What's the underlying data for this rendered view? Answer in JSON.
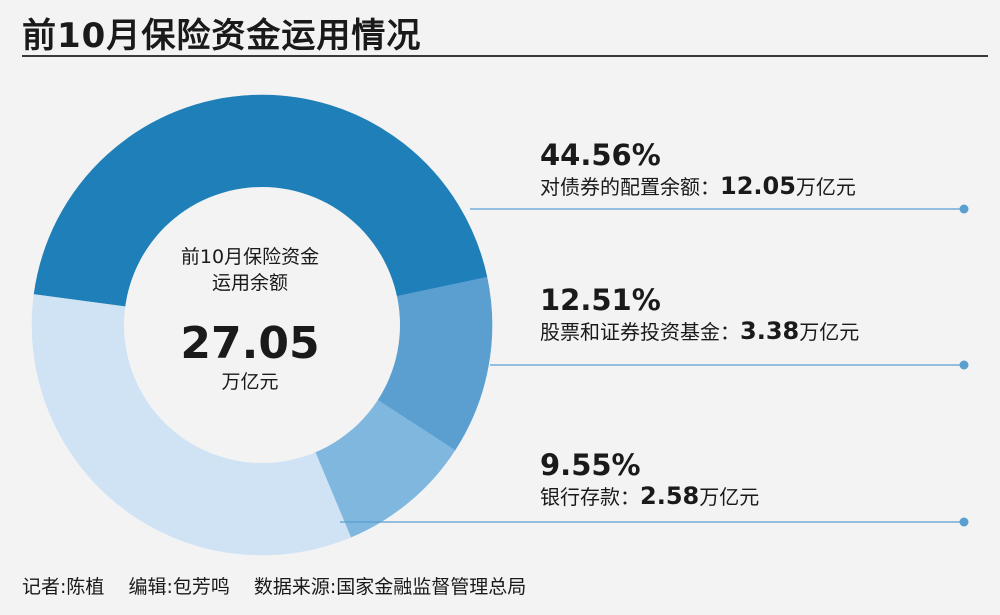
{
  "title": "前10月保险资金运用情况",
  "center": {
    "label_line1": "前10月保险资金",
    "label_line2": "运用余额",
    "value": "27.05",
    "unit": "万亿元"
  },
  "annotations": [
    {
      "pct": "44.56%",
      "desc": "对债券的配置余额：",
      "amount": "12.05",
      "unit": "万亿元"
    },
    {
      "pct": "12.51%",
      "desc": "股票和证券投资基金：",
      "amount": "3.38",
      "unit": "万亿元"
    },
    {
      "pct": "9.55%",
      "desc": "银行存款：",
      "amount": "2.58",
      "unit": "万亿元"
    }
  ],
  "footer": {
    "reporter": "记者:陈植",
    "editor": "编辑:包芳鸣",
    "source": "数据来源:国家金融监督管理总局"
  },
  "colors": {
    "bonds": "#1f7fb8",
    "stocks_funds": "#5a9fd0",
    "deposits": "#7fb7df",
    "other": "#cfe3f5",
    "center_fill": "#f3f3f3",
    "leader": "#5a9fd0"
  },
  "chart_data": {
    "type": "pie",
    "title": "前10月保险资金运用情况",
    "total": 27.05,
    "total_unit": "万亿元",
    "categories": [
      "对债券的配置余额",
      "股票和证券投资基金",
      "银行存款"
    ],
    "values": [
      12.05,
      3.38,
      2.58
    ],
    "percentages": [
      44.56,
      12.51,
      9.55
    ]
  }
}
